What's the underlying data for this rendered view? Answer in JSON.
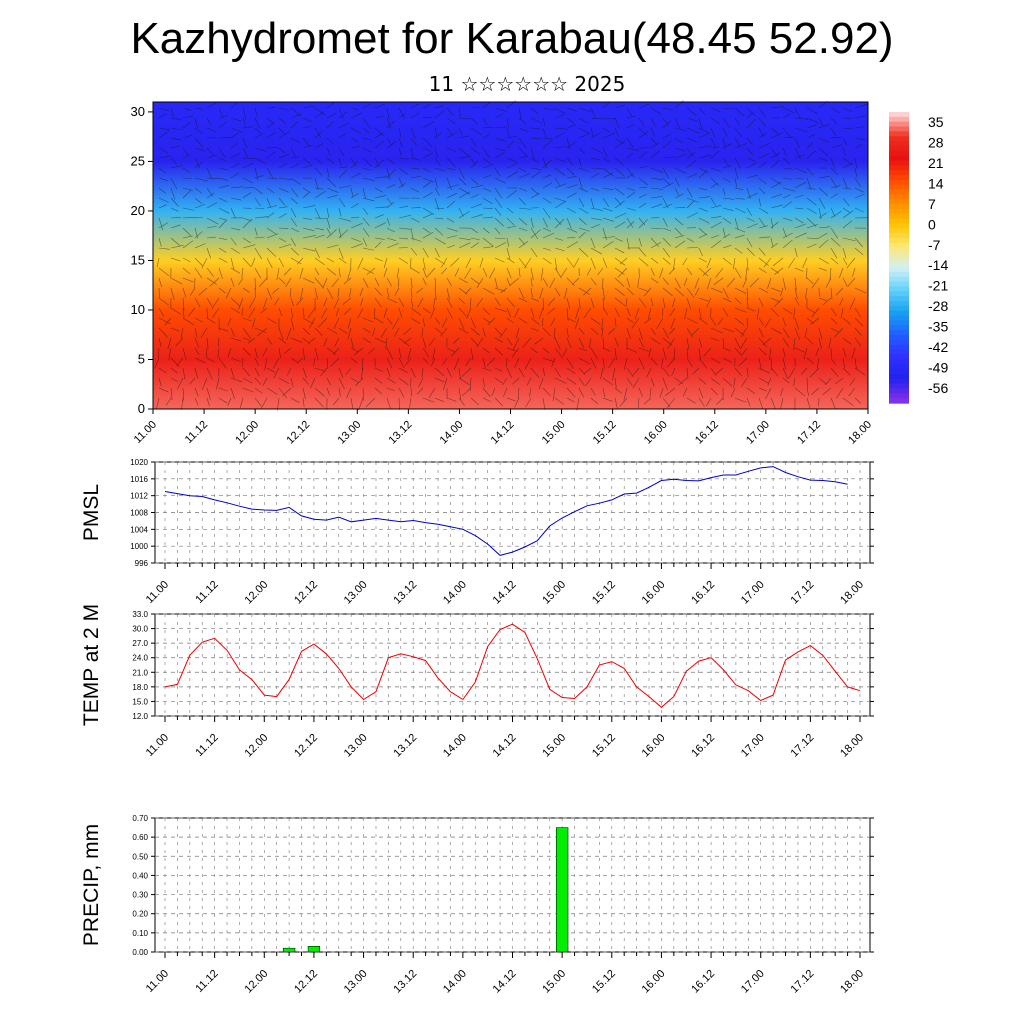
{
  "title": "Kazhydromet for Karabau(48.45 52.92)",
  "subtitle": "11 ☆☆☆☆☆☆ 2025",
  "chart_data": [
    {
      "type": "heatmap",
      "title": "",
      "ylim": [
        0,
        31
      ],
      "y_ticks": [
        "0",
        "5",
        "10",
        "15",
        "20",
        "25",
        "30"
      ],
      "x_ticks": [
        "11.00",
        "11.12",
        "12.00",
        "12.12",
        "13.00",
        "13.12",
        "14.00",
        "14.12",
        "15.00",
        "15.12",
        "16.00",
        "16.12",
        "17.00",
        "17.12",
        "18.00"
      ],
      "colorbar_labels": [
        "35",
        "28",
        "21",
        "14",
        "7",
        "0",
        "-7",
        "-14",
        "-21",
        "-28",
        "-35",
        "-42",
        "-49",
        "-56"
      ],
      "colorbar_colors": [
        "#ffd0d0",
        "#f03020",
        "#e81010",
        "#ff4a00",
        "#ff8a00",
        "#ffc400",
        "#ffe873",
        "#d0f0f8",
        "#60d0f8",
        "#18a0f0",
        "#2060ff",
        "#3030ff",
        "#2222ee",
        "#8030e8"
      ],
      "layer_temps": [
        [
          0,
          30
        ],
        [
          5,
          24
        ],
        [
          10,
          12
        ],
        [
          15,
          -5
        ],
        [
          20,
          -30
        ],
        [
          25,
          -56
        ],
        [
          30,
          -52
        ]
      ],
      "note_wind": "wind barbs overlay"
    },
    {
      "type": "line",
      "ylabel": "PMSL",
      "ylim": [
        996,
        1020
      ],
      "y_ticks": [
        "1020",
        "1016",
        "1012",
        "1008",
        "1004",
        "1000",
        "996"
      ],
      "x_ticks": [
        "11.00",
        "11.12",
        "12.00",
        "12.12",
        "13.00",
        "13.12",
        "14.00",
        "14.12",
        "15.00",
        "15.12",
        "16.00",
        "16.12",
        "17.00",
        "17.12",
        "18.00"
      ],
      "color": "#0000cc",
      "values": [
        1013,
        1012.5,
        1012,
        1011.8,
        1011,
        1010.3,
        1009.5,
        1008.8,
        1008.6,
        1008.5,
        1009.2,
        1007.2,
        1006.4,
        1006.2,
        1006.9,
        1005.8,
        1006.2,
        1006.6,
        1006.2,
        1005.8,
        1006.1,
        1005.6,
        1005.2,
        1004.6,
        1004,
        1002.5,
        1000.5,
        997.8,
        998.6,
        999.8,
        1001.3,
        1004.8,
        1006.7,
        1008.2,
        1009.6,
        1010.2,
        1011,
        1012.4,
        1012.6,
        1014,
        1015.6,
        1015.9,
        1015.6,
        1015.5,
        1016.3,
        1016.9,
        1016.9,
        1017.8,
        1018.6,
        1018.9,
        1017.5,
        1016.5,
        1015.7,
        1015.6,
        1015.3,
        1014.7
      ]
    },
    {
      "type": "line",
      "ylabel": "TEMP at 2 M",
      "ylim": [
        12,
        33
      ],
      "y_ticks": [
        "33.0",
        "30.0",
        "27.0",
        "24.0",
        "21.0",
        "18.0",
        "15.0",
        "12.0"
      ],
      "x_ticks": [
        "11.00",
        "11.12",
        "12.00",
        "12.12",
        "13.00",
        "13.12",
        "14.00",
        "14.12",
        "15.00",
        "15.12",
        "16.00",
        "16.12",
        "17.00",
        "17.12",
        "18.00"
      ],
      "color": "#ee0000",
      "values": [
        18,
        18.5,
        24.5,
        27.2,
        28,
        25.5,
        21.5,
        19.5,
        16.3,
        16,
        19.5,
        25.3,
        26.8,
        24.8,
        21.8,
        18,
        15.4,
        17,
        24,
        24.8,
        24.2,
        23.4,
        19.8,
        17,
        15.4,
        19,
        26.3,
        29.8,
        30.9,
        29.2,
        23.8,
        17.5,
        15.8,
        15.6,
        18,
        22.5,
        23.2,
        21.8,
        18,
        16,
        13.8,
        16,
        21.2,
        23.3,
        24,
        21.5,
        18.4,
        17.2,
        15.2,
        16.3,
        23.5,
        25.2,
        26.5,
        24.5,
        21.2,
        18,
        17.2
      ]
    },
    {
      "type": "bar",
      "ylabel": "PRECIP, mm",
      "ylim": [
        0,
        0.7
      ],
      "y_ticks": [
        "0.70",
        "0.60",
        "0.50",
        "0.40",
        "0.30",
        "0.20",
        "0.10",
        "0.00"
      ],
      "x_ticks": [
        "11.00",
        "11.12",
        "12.00",
        "12.12",
        "13.00",
        "13.12",
        "14.00",
        "14.12",
        "15.00",
        "15.12",
        "16.00",
        "16.12",
        "17.00",
        "17.12",
        "18.00"
      ],
      "color": "#00ee00",
      "bars": [
        {
          "x": "12.06",
          "value": 0.02
        },
        {
          "x": "12.12",
          "value": 0.03
        },
        {
          "x": "15.00",
          "value": 0.65
        }
      ]
    }
  ]
}
